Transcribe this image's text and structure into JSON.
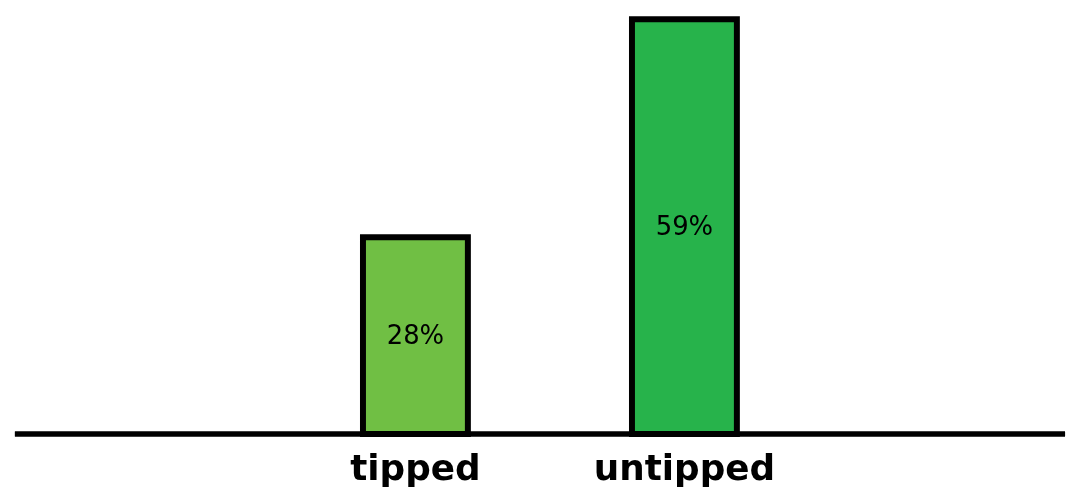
{
  "chart_data": {
    "type": "bar",
    "categories": [
      "tipped",
      "untipped"
    ],
    "values": [
      28,
      59
    ],
    "colors": [
      "#70bf44",
      "#27b34b"
    ],
    "value_labels": [
      "28%",
      "59%"
    ],
    "grid": false
  }
}
